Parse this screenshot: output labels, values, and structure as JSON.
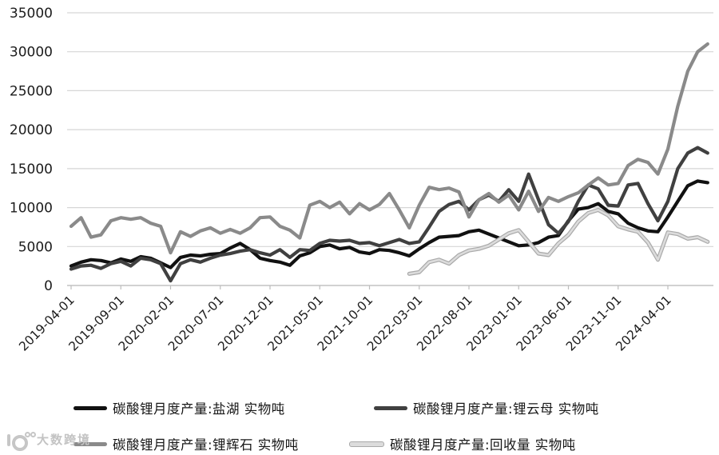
{
  "watermark": {
    "text": "大数跨境"
  },
  "legend": {
    "rows": 2,
    "position": "bottom"
  },
  "chart_data": {
    "type": "line",
    "title": "",
    "xlabel": "",
    "ylabel": "",
    "ylim": [
      0,
      35000
    ],
    "grid": true,
    "legend_position": "bottom",
    "y_ticks": [
      0,
      5000,
      10000,
      15000,
      20000,
      25000,
      30000,
      35000
    ],
    "x_tick_labels": [
      "2019-04-01",
      "2019-09-01",
      "2020-02-01",
      "2020-07-01",
      "2020-12-01",
      "2021-05-01",
      "2021-10-01",
      "2022-03-01",
      "2022-08-01",
      "2023-01-01",
      "2023-06-01",
      "2023-11-01",
      "2024-04-01"
    ],
    "x_tick_indices": [
      0,
      5,
      10,
      15,
      20,
      25,
      30,
      35,
      40,
      45,
      50,
      55,
      60
    ],
    "x_months": [
      "2019-04",
      "2019-05",
      "2019-06",
      "2019-07",
      "2019-08",
      "2019-09",
      "2019-10",
      "2019-11",
      "2019-12",
      "2020-01",
      "2020-02",
      "2020-03",
      "2020-04",
      "2020-05",
      "2020-06",
      "2020-07",
      "2020-08",
      "2020-09",
      "2020-10",
      "2020-11",
      "2020-12",
      "2021-01",
      "2021-02",
      "2021-03",
      "2021-04",
      "2021-05",
      "2021-06",
      "2021-07",
      "2021-08",
      "2021-09",
      "2021-10",
      "2021-11",
      "2021-12",
      "2022-01",
      "2022-02",
      "2022-03",
      "2022-04",
      "2022-05",
      "2022-06",
      "2022-07",
      "2022-08",
      "2022-09",
      "2022-10",
      "2022-11",
      "2022-12",
      "2023-01",
      "2023-02",
      "2023-03",
      "2023-04",
      "2023-05",
      "2023-06",
      "2023-07",
      "2023-08",
      "2023-09",
      "2023-10",
      "2023-11",
      "2023-12",
      "2024-01",
      "2024-02",
      "2024-03",
      "2024-04",
      "2024-05",
      "2024-06",
      "2024-07",
      "2024-08"
    ],
    "series": [
      {
        "name": "碳酸锂月度产量:盐湖 实物吨",
        "color": "#111111",
        "values": [
          2500,
          3000,
          3300,
          3200,
          2900,
          3400,
          3100,
          3700,
          3500,
          2900,
          2300,
          3600,
          3900,
          3800,
          4000,
          4100,
          4800,
          5400,
          4600,
          3500,
          3200,
          3000,
          2600,
          3800,
          4200,
          5000,
          5200,
          4700,
          4900,
          4300,
          4100,
          4600,
          4500,
          4200,
          3800,
          4700,
          5500,
          6200,
          6300,
          6400,
          6900,
          7100,
          6600,
          6100,
          5600,
          5100,
          5200,
          5500,
          6200,
          6400,
          8300,
          9800,
          10000,
          10500,
          9500,
          9200,
          8000,
          7400,
          7000,
          6900,
          8800,
          10800,
          12800,
          13400,
          13200
        ]
      },
      {
        "name": "碳酸锂月度产量:锂云母 实物吨",
        "color": "#404040",
        "values": [
          2100,
          2500,
          2600,
          2200,
          2800,
          3100,
          2500,
          3500,
          3300,
          2800,
          600,
          2800,
          3300,
          3000,
          3500,
          3900,
          4100,
          4400,
          4600,
          4200,
          3900,
          4600,
          3600,
          4600,
          4500,
          5400,
          5800,
          5700,
          5800,
          5400,
          5500,
          5100,
          5500,
          5900,
          5400,
          5600,
          7500,
          9500,
          10400,
          10800,
          9700,
          11000,
          11600,
          10800,
          12300,
          10800,
          14300,
          11000,
          7800,
          6700,
          8200,
          10800,
          12900,
          12400,
          10300,
          10200,
          12900,
          13100,
          10500,
          8300,
          10800,
          15000,
          17000,
          17700,
          17000
        ]
      },
      {
        "name": "碳酸锂月度产量:锂辉石 实物吨",
        "color": "#8a8a8a",
        "values": [
          7600,
          8700,
          6200,
          6500,
          8300,
          8700,
          8500,
          8700,
          8000,
          7600,
          4200,
          6900,
          6300,
          7000,
          7400,
          6700,
          7200,
          6700,
          7400,
          8700,
          8800,
          7600,
          7100,
          6100,
          10300,
          10800,
          10000,
          10700,
          9200,
          10500,
          9700,
          10400,
          11800,
          9700,
          7400,
          10300,
          12600,
          12300,
          12500,
          12000,
          8800,
          11000,
          11800,
          10700,
          11600,
          9700,
          12100,
          9500,
          11300,
          10800,
          11400,
          11900,
          12900,
          13800,
          12900,
          13100,
          15400,
          16200,
          15800,
          14300,
          17500,
          23000,
          27500,
          30000,
          31000
        ]
      },
      {
        "name": "碳酸锂月度产量:回收量 实物吨",
        "color": "#dcdcdc",
        "edge_color": "#a9a9a9",
        "values": [
          null,
          null,
          null,
          null,
          null,
          null,
          null,
          null,
          null,
          null,
          null,
          null,
          null,
          null,
          null,
          null,
          null,
          null,
          null,
          null,
          null,
          null,
          null,
          null,
          null,
          null,
          null,
          null,
          null,
          null,
          null,
          null,
          null,
          null,
          1500,
          1700,
          3000,
          3300,
          2800,
          3900,
          4500,
          4700,
          5100,
          5900,
          6700,
          7100,
          5600,
          4100,
          3900,
          5400,
          6500,
          8200,
          9300,
          9700,
          9000,
          7600,
          7200,
          6900,
          5500,
          3300,
          6800,
          6600,
          6000,
          6200,
          5600
        ]
      }
    ]
  }
}
